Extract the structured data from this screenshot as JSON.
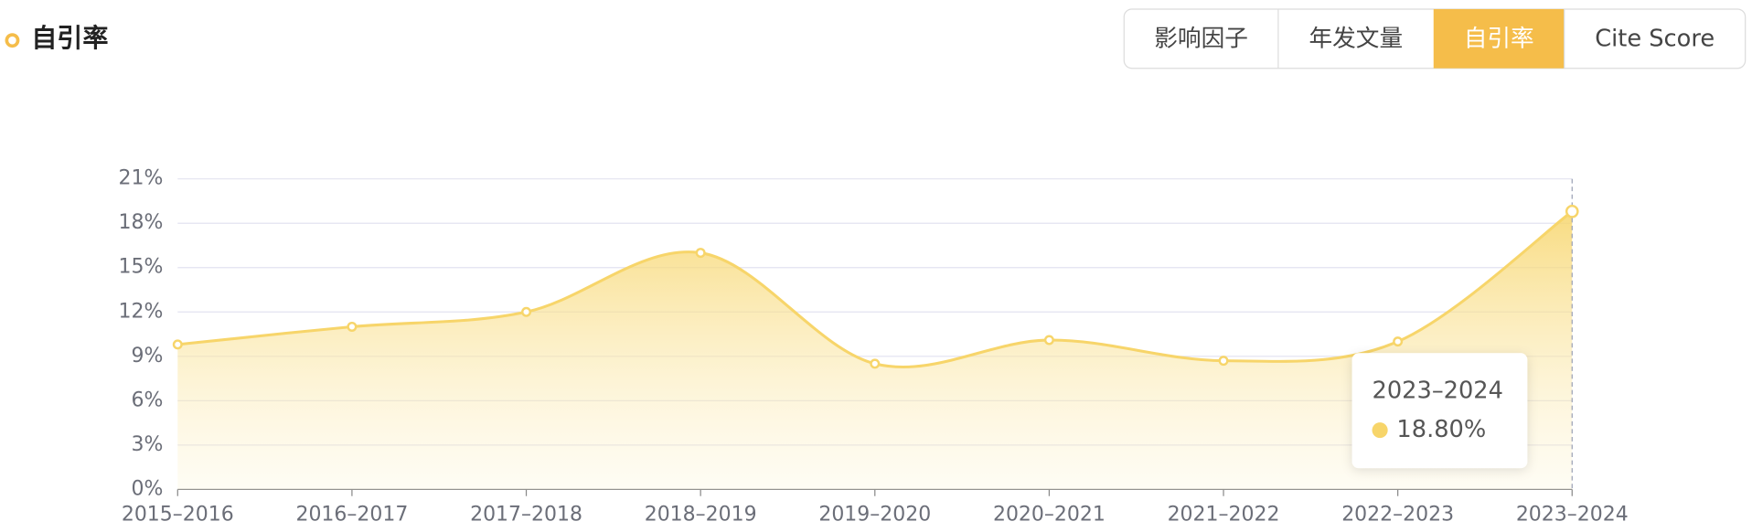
{
  "header": {
    "title": "自引率",
    "tabs": [
      "影响因子",
      "年发文量",
      "自引率",
      "Cite Score"
    ],
    "active_tab": 2
  },
  "chart_data": {
    "type": "area",
    "categories": [
      "2015–2016",
      "2016–2017",
      "2017–2018",
      "2018–2019",
      "2019–2020",
      "2020–2021",
      "2021–2022",
      "2022–2023",
      "2023–2024"
    ],
    "values": [
      9.8,
      11.0,
      12.0,
      16.0,
      8.5,
      10.1,
      8.7,
      10.0,
      18.8
    ],
    "value_labels": [
      null,
      null,
      null,
      null,
      null,
      null,
      null,
      null,
      "18.80%"
    ],
    "color": "#f7d56a",
    "ylim": [
      0,
      21
    ],
    "yticks": [
      {
        "value": 0,
        "label": "0%"
      },
      {
        "value": 3,
        "label": "3%"
      },
      {
        "value": 6,
        "label": "6%"
      },
      {
        "value": 9,
        "label": "9%"
      },
      {
        "value": 12,
        "label": "12%"
      },
      {
        "value": 15,
        "label": "15%"
      },
      {
        "value": 18,
        "label": "18%"
      },
      {
        "value": 21,
        "label": "21%"
      }
    ],
    "grid": true
  }
}
